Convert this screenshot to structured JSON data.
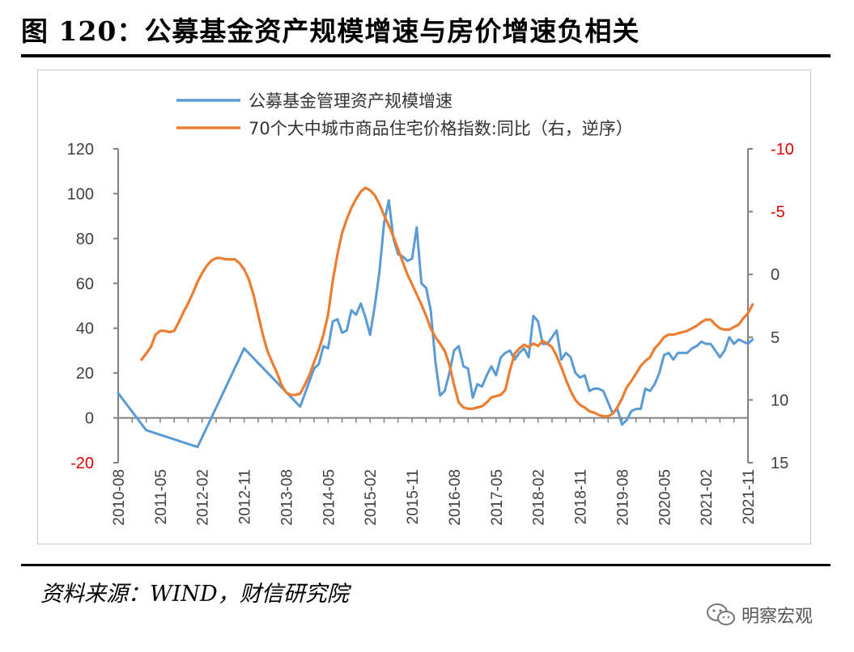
{
  "figure": {
    "title": "图 120：公募基金资产规模增速与房价增速负相关",
    "source": "资料来源：WIND，财信研究院",
    "watermark": "明察宏观",
    "watermark_icon": "wechat-icon"
  },
  "chart_data": {
    "type": "line",
    "title": "",
    "xlabel": "",
    "ylabel_left": "",
    "ylabel_right": "",
    "x_tick_labels": [
      "2010-08",
      "2011-05",
      "2012-02",
      "2012-11",
      "2013-08",
      "2014-05",
      "2015-02",
      "2015-11",
      "2016-08",
      "2017-05",
      "2018-02",
      "2018-11",
      "2019-08",
      "2020-05",
      "2021-02",
      "2021-11"
    ],
    "x_range": [
      "2010-08",
      "2021-11"
    ],
    "y_left": {
      "range": [
        -20,
        120
      ],
      "ticks": [
        -20,
        0,
        20,
        40,
        60,
        80,
        100,
        120
      ],
      "tick_labels": [
        "-20",
        "0",
        "20",
        "40",
        "60",
        "80",
        "100",
        "120"
      ],
      "negative_color": "#e00000"
    },
    "y_right": {
      "range": [
        -10,
        15
      ],
      "reversed": true,
      "ticks": [
        -10,
        -5,
        0,
        5,
        10,
        15
      ],
      "tick_labels": [
        "-10",
        "-5",
        "0",
        "5",
        "10",
        "15"
      ],
      "negative_color": "#e00000"
    },
    "grid": false,
    "legend_position": "top",
    "series": [
      {
        "name": "公募基金管理资产规模增速",
        "axis": "left",
        "color": "#5b9bd5",
        "points": [
          [
            "2010-08",
            11
          ],
          [
            "2011-02",
            -5.5
          ],
          [
            "2012-01",
            -13
          ],
          [
            "2012-11",
            31
          ],
          [
            "2013-11",
            5
          ],
          [
            "2014-02",
            22
          ],
          [
            "2014-03",
            24
          ],
          [
            "2014-04",
            32
          ],
          [
            "2014-05",
            31
          ],
          [
            "2014-06",
            43
          ],
          [
            "2014-07",
            44
          ],
          [
            "2014-08",
            38
          ],
          [
            "2014-09",
            39
          ],
          [
            "2014-10",
            48
          ],
          [
            "2014-11",
            46
          ],
          [
            "2014-12",
            51
          ],
          [
            "2015-01",
            45
          ],
          [
            "2015-02",
            37
          ],
          [
            "2015-03",
            50
          ],
          [
            "2015-04",
            65
          ],
          [
            "2015-05",
            87
          ],
          [
            "2015-06",
            97
          ],
          [
            "2015-07",
            80
          ],
          [
            "2015-08",
            73
          ],
          [
            "2015-09",
            72
          ],
          [
            "2015-10",
            70
          ],
          [
            "2015-11",
            71
          ],
          [
            "2015-12",
            85
          ],
          [
            "2016-01",
            60
          ],
          [
            "2016-02",
            58
          ],
          [
            "2016-03",
            48
          ],
          [
            "2016-04",
            25
          ],
          [
            "2016-05",
            10
          ],
          [
            "2016-06",
            12
          ],
          [
            "2016-07",
            20
          ],
          [
            "2016-08",
            30
          ],
          [
            "2016-09",
            32
          ],
          [
            "2016-10",
            23
          ],
          [
            "2016-11",
            22
          ],
          [
            "2016-12",
            9
          ],
          [
            "2017-01",
            15
          ],
          [
            "2017-02",
            14
          ],
          [
            "2017-03",
            19
          ],
          [
            "2017-04",
            23
          ],
          [
            "2017-05",
            19
          ],
          [
            "2017-06",
            27
          ],
          [
            "2017-07",
            29
          ],
          [
            "2017-08",
            30
          ],
          [
            "2017-09",
            26
          ],
          [
            "2017-10",
            29
          ],
          [
            "2017-11",
            31
          ],
          [
            "2017-12",
            27
          ],
          [
            "2018-01",
            45.5
          ],
          [
            "2018-02",
            43
          ],
          [
            "2018-03",
            33
          ],
          [
            "2018-04",
            33
          ],
          [
            "2018-05",
            36
          ],
          [
            "2018-06",
            39
          ],
          [
            "2018-07",
            26
          ],
          [
            "2018-08",
            29
          ],
          [
            "2018-09",
            27
          ],
          [
            "2018-10",
            20
          ],
          [
            "2018-11",
            18
          ],
          [
            "2018-12",
            19
          ],
          [
            "2019-01",
            12
          ],
          [
            "2019-02",
            13
          ],
          [
            "2019-03",
            13
          ],
          [
            "2019-04",
            12
          ],
          [
            "2019-05",
            7
          ],
          [
            "2019-06",
            2
          ],
          [
            "2019-07",
            4
          ],
          [
            "2019-08",
            -3
          ],
          [
            "2019-09",
            -1
          ],
          [
            "2019-10",
            3
          ],
          [
            "2019-11",
            4
          ],
          [
            "2019-12",
            4
          ],
          [
            "2020-01",
            13
          ],
          [
            "2020-02",
            12
          ],
          [
            "2020-03",
            15
          ],
          [
            "2020-04",
            20
          ],
          [
            "2020-05",
            28
          ],
          [
            "2020-06",
            29
          ],
          [
            "2020-07",
            26
          ],
          [
            "2020-08",
            29
          ],
          [
            "2020-09",
            29
          ],
          [
            "2020-10",
            29
          ],
          [
            "2020-11",
            31
          ],
          [
            "2020-12",
            32
          ],
          [
            "2021-01",
            34
          ],
          [
            "2021-02",
            33
          ],
          [
            "2021-03",
            33
          ],
          [
            "2021-04",
            30
          ],
          [
            "2021-05",
            27
          ],
          [
            "2021-06",
            30
          ],
          [
            "2021-07",
            36
          ],
          [
            "2021-08",
            33
          ],
          [
            "2021-09",
            35
          ],
          [
            "2021-10",
            34
          ],
          [
            "2021-11",
            33
          ],
          [
            "2021-12",
            35
          ]
        ]
      },
      {
        "name": "70个大中城市商品住宅价格指数:同比（右，逆序）",
        "axis": "right",
        "color": "#ed7d31",
        "points": [
          [
            "2011-01",
            6.8
          ],
          [
            "2011-02",
            6.3
          ],
          [
            "2011-03",
            5.8
          ],
          [
            "2011-04",
            4.8
          ],
          [
            "2011-05",
            4.5
          ],
          [
            "2011-06",
            4.5
          ],
          [
            "2011-07",
            4.6
          ],
          [
            "2011-08",
            4.5
          ],
          [
            "2011-09",
            3.8
          ],
          [
            "2011-10",
            3.0
          ],
          [
            "2011-11",
            2.3
          ],
          [
            "2011-12",
            1.5
          ],
          [
            "2012-01",
            0.6
          ],
          [
            "2012-02",
            -0.1
          ],
          [
            "2012-03",
            -0.7
          ],
          [
            "2012-04",
            -1.1
          ],
          [
            "2012-05",
            -1.3
          ],
          [
            "2012-06",
            -1.3
          ],
          [
            "2012-07",
            -1.2
          ],
          [
            "2012-08",
            -1.2
          ],
          [
            "2012-09",
            -1.2
          ],
          [
            "2012-10",
            -0.9
          ],
          [
            "2012-11",
            -0.4
          ],
          [
            "2012-12",
            0.4
          ],
          [
            "2013-01",
            1.6
          ],
          [
            "2013-02",
            3.2
          ],
          [
            "2013-03",
            4.8
          ],
          [
            "2013-04",
            6.1
          ],
          [
            "2013-05",
            7.0
          ],
          [
            "2013-06",
            7.8
          ],
          [
            "2013-07",
            8.8
          ],
          [
            "2013-08",
            9.4
          ],
          [
            "2013-09",
            9.6
          ],
          [
            "2013-10",
            9.6
          ],
          [
            "2013-11",
            9.5
          ],
          [
            "2013-12",
            8.8
          ],
          [
            "2014-01",
            8.0
          ],
          [
            "2014-02",
            7.0
          ],
          [
            "2014-03",
            6.0
          ],
          [
            "2014-04",
            4.8
          ],
          [
            "2014-05",
            3.2
          ],
          [
            "2014-06",
            0.5
          ],
          [
            "2014-07",
            -1.6
          ],
          [
            "2014-08",
            -3.3
          ],
          [
            "2014-09",
            -4.4
          ],
          [
            "2014-10",
            -5.3
          ],
          [
            "2014-11",
            -6.0
          ],
          [
            "2014-12",
            -6.6
          ],
          [
            "2015-01",
            -6.9
          ],
          [
            "2015-02",
            -6.7
          ],
          [
            "2015-03",
            -6.3
          ],
          [
            "2015-04",
            -5.6
          ],
          [
            "2015-05",
            -4.7
          ],
          [
            "2015-06",
            -3.9
          ],
          [
            "2015-07",
            -3.0
          ],
          [
            "2015-08",
            -2.0
          ],
          [
            "2015-09",
            -1.0
          ],
          [
            "2015-10",
            0.0
          ],
          [
            "2015-11",
            0.8
          ],
          [
            "2015-12",
            1.6
          ],
          [
            "2016-01",
            2.4
          ],
          [
            "2016-02",
            3.3
          ],
          [
            "2016-03",
            4.3
          ],
          [
            "2016-04",
            5.0
          ],
          [
            "2016-05",
            5.5
          ],
          [
            "2016-06",
            6.1
          ],
          [
            "2016-07",
            7.2
          ],
          [
            "2016-08",
            8.8
          ],
          [
            "2016-09",
            10.2
          ],
          [
            "2016-10",
            10.6
          ],
          [
            "2016-11",
            10.7
          ],
          [
            "2016-12",
            10.7
          ],
          [
            "2017-01",
            10.6
          ],
          [
            "2017-02",
            10.5
          ],
          [
            "2017-03",
            10.2
          ],
          [
            "2017-04",
            9.8
          ],
          [
            "2017-05",
            9.7
          ],
          [
            "2017-06",
            9.6
          ],
          [
            "2017-07",
            9.2
          ],
          [
            "2017-08",
            7.6
          ],
          [
            "2017-09",
            6.3
          ],
          [
            "2017-10",
            5.9
          ],
          [
            "2017-11",
            5.6
          ],
          [
            "2017-12",
            5.8
          ],
          [
            "2018-01",
            5.5
          ],
          [
            "2018-02",
            5.7
          ],
          [
            "2018-03",
            5.3
          ],
          [
            "2018-04",
            5.5
          ],
          [
            "2018-05",
            5.8
          ],
          [
            "2018-06",
            6.5
          ],
          [
            "2018-07",
            7.4
          ],
          [
            "2018-08",
            8.4
          ],
          [
            "2018-09",
            9.3
          ],
          [
            "2018-10",
            10.0
          ],
          [
            "2018-11",
            10.4
          ],
          [
            "2018-12",
            10.6
          ],
          [
            "2019-01",
            10.9
          ],
          [
            "2019-02",
            11.0
          ],
          [
            "2019-03",
            11.2
          ],
          [
            "2019-04",
            11.3
          ],
          [
            "2019-05",
            11.3
          ],
          [
            "2019-06",
            11.1
          ],
          [
            "2019-07",
            10.6
          ],
          [
            "2019-08",
            9.9
          ],
          [
            "2019-09",
            9.0
          ],
          [
            "2019-10",
            8.5
          ],
          [
            "2019-11",
            7.9
          ],
          [
            "2019-12",
            7.3
          ],
          [
            "2020-01",
            6.9
          ],
          [
            "2020-02",
            6.6
          ],
          [
            "2020-03",
            5.9
          ],
          [
            "2020-04",
            5.5
          ],
          [
            "2020-05",
            5.0
          ],
          [
            "2020-06",
            4.8
          ],
          [
            "2020-07",
            4.8
          ],
          [
            "2020-08",
            4.7
          ],
          [
            "2020-09",
            4.6
          ],
          [
            "2020-10",
            4.5
          ],
          [
            "2020-11",
            4.3
          ],
          [
            "2020-12",
            4.1
          ],
          [
            "2021-01",
            3.8
          ],
          [
            "2021-02",
            3.6
          ],
          [
            "2021-03",
            3.6
          ],
          [
            "2021-04",
            4.0
          ],
          [
            "2021-05",
            4.3
          ],
          [
            "2021-06",
            4.4
          ],
          [
            "2021-07",
            4.4
          ],
          [
            "2021-08",
            4.2
          ],
          [
            "2021-09",
            4.0
          ],
          [
            "2021-10",
            3.5
          ],
          [
            "2021-11",
            3.1
          ],
          [
            "2021-12",
            2.4
          ]
        ]
      }
    ]
  }
}
